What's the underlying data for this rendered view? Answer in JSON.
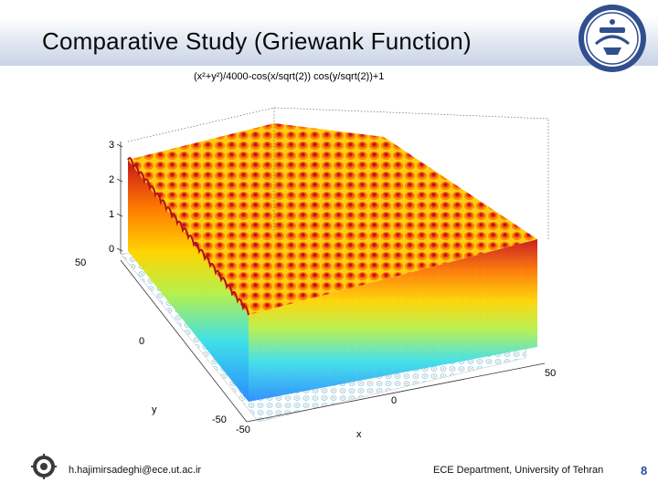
{
  "slide": {
    "title": "Comparative Study (Griewank Function)",
    "page_number": "8"
  },
  "footer": {
    "email": "h.hajimirsadeghi@ece.ut.ac.ir",
    "department": "ECE Department, University of Tehran"
  },
  "chart_data": {
    "type": "surface",
    "title": "(x²+y²)/4000-cos(x/sqrt(2)) cos(y/sqrt(2))+1",
    "xlabel": "x",
    "ylabel": "y",
    "zlabel": "",
    "xlim": [
      -50,
      50
    ],
    "ylim": [
      -50,
      50
    ],
    "zlim": [
      0,
      3
    ],
    "x_ticks": [
      "-50",
      "0",
      "50"
    ],
    "y_ticks": [
      "-50",
      "0",
      "50"
    ],
    "z_ticks": [
      "0",
      "1",
      "2",
      "3"
    ],
    "colormap": "jet",
    "contour_floor": true,
    "grid": false
  },
  "icons": {
    "logo_top": "university-seal-icon",
    "logo_bottom": "department-emblem-icon"
  }
}
